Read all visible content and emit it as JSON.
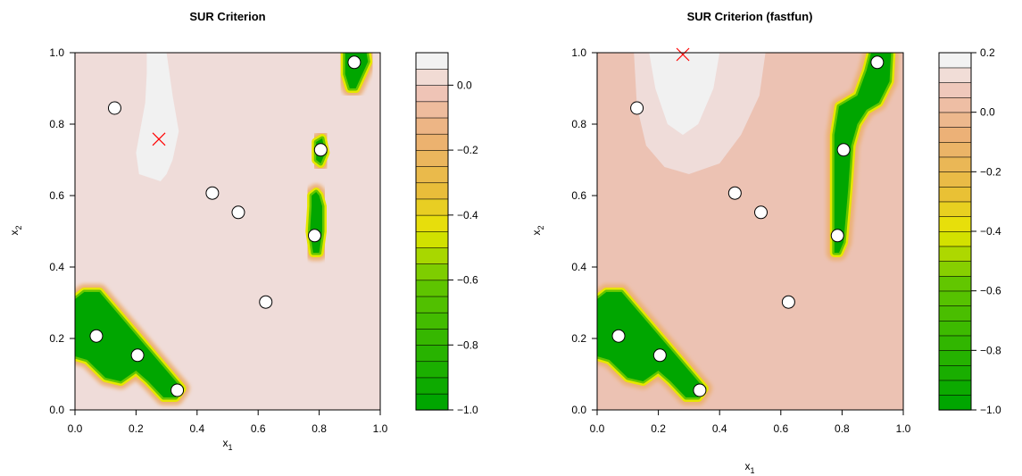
{
  "chart_data": [
    {
      "type": "contour",
      "title": "SUR Criterion",
      "xlabel": "x",
      "xlabel_sub": "1",
      "ylabel": "x",
      "ylabel_sub": "2",
      "xlim": [
        0,
        1
      ],
      "ylim": [
        0,
        1
      ],
      "x_ticks": [
        "0.0",
        "0.2",
        "0.4",
        "0.6",
        "0.8",
        "1.0"
      ],
      "y_ticks": [
        "0.0",
        "0.2",
        "0.4",
        "0.6",
        "0.8",
        "1.0"
      ],
      "background_color": "#efdcd9",
      "points": [
        {
          "x": 0.13,
          "y": 0.845
        },
        {
          "x": 0.45,
          "y": 0.607
        },
        {
          "x": 0.535,
          "y": 0.553
        },
        {
          "x": 0.625,
          "y": 0.302
        },
        {
          "x": 0.07,
          "y": 0.207
        },
        {
          "x": 0.205,
          "y": 0.153
        },
        {
          "x": 0.335,
          "y": 0.055
        },
        {
          "x": 0.785,
          "y": 0.488
        },
        {
          "x": 0.805,
          "y": 0.728
        },
        {
          "x": 0.915,
          "y": 0.973
        }
      ],
      "optimum": {
        "x": 0.275,
        "y": 0.758,
        "color": "#ff0000"
      },
      "regions": [
        {
          "level": "high",
          "color": "#f1f1f1",
          "polygon": [
            [
              0.235,
              1.0
            ],
            [
              0.3,
              1.0
            ],
            [
              0.32,
              0.88
            ],
            [
              0.34,
              0.78
            ],
            [
              0.32,
              0.7
            ],
            [
              0.3,
              0.66
            ],
            [
              0.28,
              0.64
            ],
            [
              0.21,
              0.66
            ],
            [
              0.2,
              0.72
            ],
            [
              0.23,
              0.86
            ],
            [
              0.235,
              0.94
            ]
          ]
        },
        {
          "level": "min",
          "color": "#00a600",
          "polygon": [
            [
              0.0,
              0.31
            ],
            [
              0.03,
              0.33
            ],
            [
              0.08,
              0.33
            ],
            [
              0.28,
              0.13
            ],
            [
              0.35,
              0.06
            ],
            [
              0.33,
              0.035
            ],
            [
              0.29,
              0.035
            ],
            [
              0.24,
              0.08
            ],
            [
              0.2,
              0.11
            ],
            [
              0.15,
              0.08
            ],
            [
              0.1,
              0.09
            ],
            [
              0.04,
              0.14
            ],
            [
              0.0,
              0.15
            ]
          ]
        },
        {
          "level": "min",
          "color": "#00a600",
          "polygon": [
            [
              0.775,
              0.6
            ],
            [
              0.79,
              0.61
            ],
            [
              0.8,
              0.6
            ],
            [
              0.81,
              0.57
            ],
            [
              0.81,
              0.5
            ],
            [
              0.8,
              0.44
            ],
            [
              0.78,
              0.44
            ],
            [
              0.77,
              0.5
            ],
            [
              0.775,
              0.57
            ]
          ]
        },
        {
          "level": "min",
          "color": "#00a600",
          "polygon": [
            [
              0.79,
              0.75
            ],
            [
              0.81,
              0.76
            ],
            [
              0.82,
              0.72
            ],
            [
              0.805,
              0.69
            ],
            [
              0.79,
              0.7
            ]
          ]
        },
        {
          "level": "min",
          "color": "#00a600",
          "polygon": [
            [
              0.885,
              1.0
            ],
            [
              0.955,
              1.0
            ],
            [
              0.96,
              0.975
            ],
            [
              0.92,
              0.9
            ],
            [
              0.9,
              0.9
            ],
            [
              0.885,
              0.94
            ]
          ]
        }
      ],
      "colorbar": {
        "tick_labels": [
          "0.0",
          "−0.2",
          "−0.4",
          "−0.6",
          "−0.8",
          "−1.0"
        ],
        "tick_values": [
          0.0,
          -0.2,
          -0.4,
          -0.6,
          -0.8,
          -1.0
        ],
        "range": [
          -1.0,
          0.1
        ],
        "levels": 22
      }
    },
    {
      "type": "contour",
      "title": "SUR Criterion (fastfun)",
      "xlabel": "x",
      "xlabel_sub": "1",
      "ylabel": "x",
      "ylabel_sub": "2",
      "xlim": [
        0,
        1
      ],
      "ylim": [
        0,
        1
      ],
      "x_ticks": [
        "0.0",
        "0.2",
        "0.4",
        "0.6",
        "0.8",
        "1.0"
      ],
      "y_ticks": [
        "0.0",
        "0.2",
        "0.4",
        "0.6",
        "0.8",
        "1.0"
      ],
      "background_color": "#ecc2b3",
      "points": [
        {
          "x": 0.13,
          "y": 0.845
        },
        {
          "x": 0.45,
          "y": 0.607
        },
        {
          "x": 0.535,
          "y": 0.553
        },
        {
          "x": 0.625,
          "y": 0.302
        },
        {
          "x": 0.07,
          "y": 0.207
        },
        {
          "x": 0.205,
          "y": 0.153
        },
        {
          "x": 0.335,
          "y": 0.055
        },
        {
          "x": 0.785,
          "y": 0.488
        },
        {
          "x": 0.805,
          "y": 0.728
        },
        {
          "x": 0.915,
          "y": 0.973
        }
      ],
      "optimum": {
        "x": 0.28,
        "y": 0.995,
        "color": "#ff0000"
      },
      "regions": [
        {
          "level": "mid",
          "color": "#efdcd9",
          "polygon": [
            [
              0.12,
              1.0
            ],
            [
              0.55,
              1.0
            ],
            [
              0.53,
              0.88
            ],
            [
              0.47,
              0.77
            ],
            [
              0.4,
              0.69
            ],
            [
              0.3,
              0.66
            ],
            [
              0.22,
              0.68
            ],
            [
              0.16,
              0.74
            ],
            [
              0.13,
              0.85
            ]
          ]
        },
        {
          "level": "high",
          "color": "#f1f1f1",
          "polygon": [
            [
              0.17,
              1.0
            ],
            [
              0.4,
              1.0
            ],
            [
              0.38,
              0.9
            ],
            [
              0.33,
              0.8
            ],
            [
              0.28,
              0.77
            ],
            [
              0.23,
              0.8
            ],
            [
              0.19,
              0.9
            ]
          ]
        },
        {
          "level": "min",
          "color": "#00a600",
          "polygon": [
            [
              0.0,
              0.31
            ],
            [
              0.03,
              0.33
            ],
            [
              0.08,
              0.33
            ],
            [
              0.28,
              0.13
            ],
            [
              0.35,
              0.06
            ],
            [
              0.33,
              0.035
            ],
            [
              0.29,
              0.035
            ],
            [
              0.24,
              0.08
            ],
            [
              0.2,
              0.11
            ],
            [
              0.15,
              0.08
            ],
            [
              0.1,
              0.09
            ],
            [
              0.04,
              0.14
            ],
            [
              0.0,
              0.15
            ]
          ]
        },
        {
          "level": "min",
          "color": "#00a600",
          "polygon": [
            [
              0.775,
              0.44
            ],
            [
              0.775,
              0.77
            ],
            [
              0.79,
              0.85
            ],
            [
              0.85,
              0.88
            ],
            [
              0.88,
              0.95
            ],
            [
              0.895,
              1.0
            ],
            [
              0.96,
              1.0
            ],
            [
              0.955,
              0.92
            ],
            [
              0.92,
              0.86
            ],
            [
              0.88,
              0.84
            ],
            [
              0.85,
              0.8
            ],
            [
              0.83,
              0.74
            ],
            [
              0.82,
              0.62
            ],
            [
              0.805,
              0.47
            ],
            [
              0.79,
              0.44
            ]
          ]
        }
      ],
      "colorbar": {
        "tick_labels": [
          "0.2",
          "0.0",
          "−0.2",
          "−0.4",
          "−0.6",
          "−0.8",
          "−1.0"
        ],
        "tick_values": [
          0.2,
          0.0,
          -0.2,
          -0.4,
          -0.6,
          -0.8,
          -1.0
        ],
        "range": [
          -1.0,
          0.2
        ],
        "levels": 24
      }
    }
  ]
}
